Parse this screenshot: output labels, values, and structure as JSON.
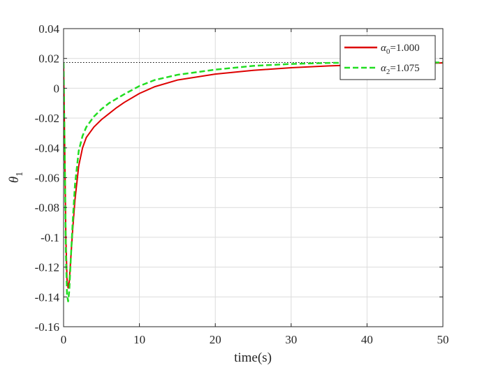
{
  "chart_data": {
    "type": "line",
    "title": "",
    "xlabel": "time(s)",
    "ylabel": {
      "symbol": "θ",
      "subscript": "1"
    },
    "xlim": [
      0,
      50
    ],
    "ylim": [
      -0.16,
      0.04
    ],
    "grid": true,
    "legend_position": "top-right",
    "xticks": [
      "0",
      "10",
      "20",
      "30",
      "40",
      "50"
    ],
    "yticks": [
      "0.04",
      "0.02",
      "0",
      "-0.02",
      "-0.04",
      "-0.06",
      "-0.08",
      "-0.1",
      "-0.12",
      "-0.14",
      "-0.16"
    ],
    "reference_line": {
      "y": 0.0173,
      "style": "dotted",
      "color": "#000000"
    },
    "series": [
      {
        "legend_symbol": "α",
        "legend_subscript": "0",
        "legend_value": "=1.000",
        "color": "#dd0000",
        "style": "solid",
        "points": [
          [
            0,
            0.017
          ],
          [
            0.15,
            -0.04
          ],
          [
            0.3,
            -0.1
          ],
          [
            0.45,
            -0.128
          ],
          [
            0.6,
            -0.134
          ],
          [
            0.75,
            -0.13
          ],
          [
            0.9,
            -0.118
          ],
          [
            1.2,
            -0.095
          ],
          [
            1.5,
            -0.075
          ],
          [
            2,
            -0.052
          ],
          [
            2.5,
            -0.04
          ],
          [
            3,
            -0.033
          ],
          [
            4,
            -0.026
          ],
          [
            5,
            -0.021
          ],
          [
            6,
            -0.017
          ],
          [
            7,
            -0.013
          ],
          [
            8,
            -0.0095
          ],
          [
            10,
            -0.0035
          ],
          [
            12,
            0.001
          ],
          [
            15,
            0.0055
          ],
          [
            20,
            0.0095
          ],
          [
            25,
            0.012
          ],
          [
            30,
            0.0138
          ],
          [
            35,
            0.015
          ],
          [
            40,
            0.0158
          ],
          [
            45,
            0.0165
          ],
          [
            50,
            0.017
          ]
        ]
      },
      {
        "legend_symbol": "α",
        "legend_subscript": "2",
        "legend_value": "=1.075",
        "color": "#22dd22",
        "style": "dashed",
        "points": [
          [
            0,
            0.017
          ],
          [
            0.15,
            -0.045
          ],
          [
            0.3,
            -0.11
          ],
          [
            0.45,
            -0.138
          ],
          [
            0.6,
            -0.143
          ],
          [
            0.75,
            -0.136
          ],
          [
            0.9,
            -0.12
          ],
          [
            1.2,
            -0.09
          ],
          [
            1.5,
            -0.065
          ],
          [
            2,
            -0.042
          ],
          [
            2.5,
            -0.032
          ],
          [
            3,
            -0.026
          ],
          [
            4,
            -0.019
          ],
          [
            5,
            -0.014
          ],
          [
            6,
            -0.01
          ],
          [
            7,
            -0.007
          ],
          [
            8,
            -0.004
          ],
          [
            10,
            0.0015
          ],
          [
            12,
            0.0055
          ],
          [
            15,
            0.009
          ],
          [
            20,
            0.0125
          ],
          [
            25,
            0.015
          ],
          [
            30,
            0.0163
          ],
          [
            35,
            0.017
          ],
          [
            40,
            0.0172
          ],
          [
            45,
            0.0173
          ],
          [
            50,
            0.0173
          ]
        ]
      }
    ]
  }
}
